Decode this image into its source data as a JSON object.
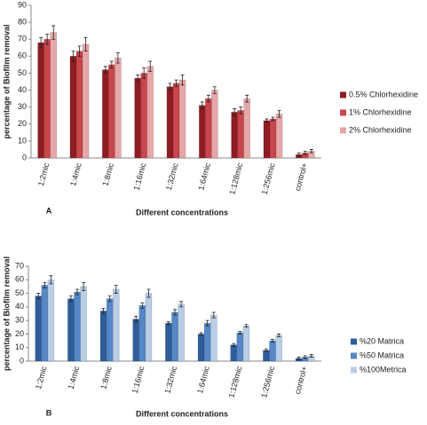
{
  "chart_data": [
    {
      "type": "bar",
      "panel": "A",
      "ylabel": "percentage of Biofilm removal",
      "xlabel": "Different concentrations",
      "categories": [
        "1:2mic",
        "1:4mic",
        "1:8mic",
        "1:16mic",
        "1:32mic",
        "1:64mic",
        "1:128mic",
        "1:256mic",
        "control+"
      ],
      "series": [
        {
          "name": "0.5% Chlorhexidine",
          "color": "#8e1c22",
          "values": [
            68,
            60,
            52,
            47,
            42,
            31,
            27,
            22,
            2
          ],
          "errors": [
            3,
            3,
            2,
            2,
            2,
            2,
            2,
            1,
            1
          ]
        },
        {
          "name": "1% Chlorhexidine",
          "color": "#c8464c",
          "values": [
            70,
            63,
            55,
            50,
            44,
            35,
            28,
            23,
            3
          ],
          "errors": [
            3,
            3,
            2,
            3,
            2,
            2,
            2,
            1,
            1
          ]
        },
        {
          "name": "2% Chlorhexidine",
          "color": "#e6a7a9",
          "values": [
            74,
            67,
            59,
            54,
            46,
            40,
            35,
            26,
            4
          ],
          "errors": [
            4,
            4,
            3,
            3,
            3,
            2,
            2,
            2,
            1
          ]
        }
      ],
      "ylim": [
        0,
        90
      ],
      "yticks": [
        0,
        10,
        20,
        30,
        40,
        50,
        60,
        70,
        80,
        90
      ]
    },
    {
      "type": "bar",
      "panel": "B",
      "ylabel": "percentage of Biofilm removal",
      "xlabel": "Different concentrations",
      "categories": [
        "1:2mic",
        "1:4mic",
        "1:8mic",
        "1:16mic",
        "1:32mic",
        "1:64mic",
        "1:128mic",
        "1:256mic",
        "control+"
      ],
      "series": [
        {
          "name": "%20 Matrica",
          "color": "#2f5d9a",
          "values": [
            48,
            46,
            37,
            31,
            28,
            20,
            12,
            8,
            2
          ],
          "errors": [
            2,
            2,
            2,
            2,
            1,
            1,
            1,
            1,
            1
          ]
        },
        {
          "name": "%50 Matrica",
          "color": "#5687c6",
          "values": [
            56,
            51,
            46,
            41,
            36,
            28,
            21,
            15,
            3
          ],
          "errors": [
            2,
            2,
            2,
            2,
            2,
            2,
            1,
            1,
            1
          ]
        },
        {
          "name": "%100Metrica",
          "color": "#b9cde6",
          "values": [
            60,
            55,
            53,
            50,
            42,
            34,
            26,
            19,
            4
          ],
          "errors": [
            3,
            3,
            3,
            3,
            2,
            2,
            1,
            1,
            1
          ]
        }
      ],
      "ylim": [
        0,
        70
      ],
      "yticks": [
        0,
        10,
        20,
        30,
        40,
        50,
        60,
        70
      ]
    }
  ]
}
